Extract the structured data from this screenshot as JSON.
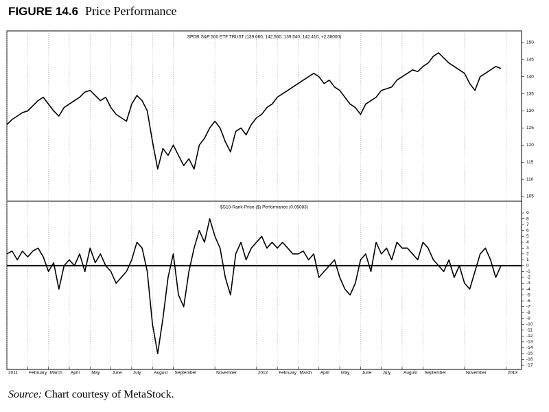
{
  "figure": {
    "number": "FIGURE 14.6",
    "title": "Price Performance"
  },
  "source": {
    "label": "Source:",
    "text": "Chart courtesy of MetaStock."
  },
  "chart_data": [
    {
      "type": "line",
      "title": "SPDR S&P 500 ETF TRUST (139.660, 142.560, 139.540, 142.410, +2.38000)",
      "series": [
        {
          "color": "#000000",
          "values": [
            126,
            127.5,
            128.5,
            129.5,
            130,
            131.5,
            133,
            134,
            132,
            130,
            128.5,
            131,
            132,
            133,
            134,
            135.5,
            136,
            134.5,
            133,
            134,
            131,
            129,
            128,
            127,
            132,
            134.5,
            133,
            130,
            121,
            113,
            119,
            117,
            120,
            117,
            114,
            116,
            113,
            120,
            122,
            125,
            127,
            125,
            121,
            118,
            124,
            125,
            123,
            126,
            128,
            129,
            131,
            132,
            134,
            135,
            136,
            137,
            138,
            139,
            140,
            141,
            140,
            138,
            139,
            137,
            136,
            134,
            132,
            131,
            129,
            132,
            133,
            134,
            136,
            136.5,
            137,
            139,
            140,
            141,
            142,
            141.5,
            143,
            144,
            146,
            147,
            145.5,
            144,
            143,
            142,
            141,
            138,
            136,
            140,
            141,
            142,
            143,
            142.4
          ]
        }
      ],
      "xlim": [
        0,
        95
      ],
      "ylim": [
        103.6,
        153.4
      ],
      "yticks": [
        105,
        110,
        115,
        120,
        125,
        130,
        135,
        140,
        145,
        150
      ]
    },
    {
      "type": "line",
      "title": "$S10-Rank-Price ($) Performance (0.05083)",
      "series": [
        {
          "color": "#000000",
          "values": [
            2,
            2.5,
            1,
            2.5,
            1.5,
            2.5,
            3,
            1.5,
            -1,
            0.5,
            -4,
            0,
            1,
            0,
            2,
            -1,
            3,
            0.5,
            2,
            0,
            -1,
            -3,
            -2,
            -1,
            1,
            4,
            3,
            -1,
            -10,
            -15,
            -9,
            -2,
            2,
            -5,
            -7,
            -1,
            3,
            6,
            4,
            8,
            5,
            3,
            -2,
            -5,
            2,
            4,
            1,
            3,
            4,
            5,
            3,
            4,
            3,
            4,
            3,
            2,
            2,
            2.5,
            1,
            2,
            -2,
            -1,
            0,
            1,
            -2,
            -4,
            -5,
            -3,
            1,
            2,
            -1,
            4,
            2,
            3,
            1,
            4,
            3,
            3,
            2,
            1,
            4,
            3,
            1,
            0,
            -1,
            1,
            -2,
            0,
            -3,
            -4,
            -1,
            2,
            3,
            1,
            -2,
            0
          ]
        }
      ],
      "hline": 0,
      "xlim": [
        0,
        95
      ],
      "ylim": [
        -17.7,
        11
      ],
      "yticks": [
        -17,
        -16,
        -15,
        -14,
        -13,
        -12,
        -11,
        -10,
        -9,
        -8,
        -7,
        -6,
        -5,
        -4,
        -3,
        -2,
        -1,
        0,
        1,
        2,
        3,
        4,
        5,
        6,
        7,
        8,
        9
      ],
      "xticks": [
        {
          "value": 0,
          "label": "2011"
        },
        {
          "value": 4,
          "label": "February"
        },
        {
          "value": 8,
          "label": "March"
        },
        {
          "value": 12,
          "label": "April"
        },
        {
          "value": 16,
          "label": "May"
        },
        {
          "value": 20,
          "label": "June"
        },
        {
          "value": 24,
          "label": "July"
        },
        {
          "value": 28,
          "label": "August"
        },
        {
          "value": 32,
          "label": "September"
        },
        {
          "value": 40,
          "label": "November"
        },
        {
          "value": 48,
          "label": "2012"
        },
        {
          "value": 52,
          "label": "February"
        },
        {
          "value": 56,
          "label": "March"
        },
        {
          "value": 60,
          "label": "April"
        },
        {
          "value": 64,
          "label": "May"
        },
        {
          "value": 68,
          "label": "June"
        },
        {
          "value": 72,
          "label": "July"
        },
        {
          "value": 76,
          "label": "August"
        },
        {
          "value": 80,
          "label": "September"
        },
        {
          "value": 88,
          "label": "November"
        },
        {
          "value": 96,
          "label": "2013"
        }
      ]
    }
  ]
}
